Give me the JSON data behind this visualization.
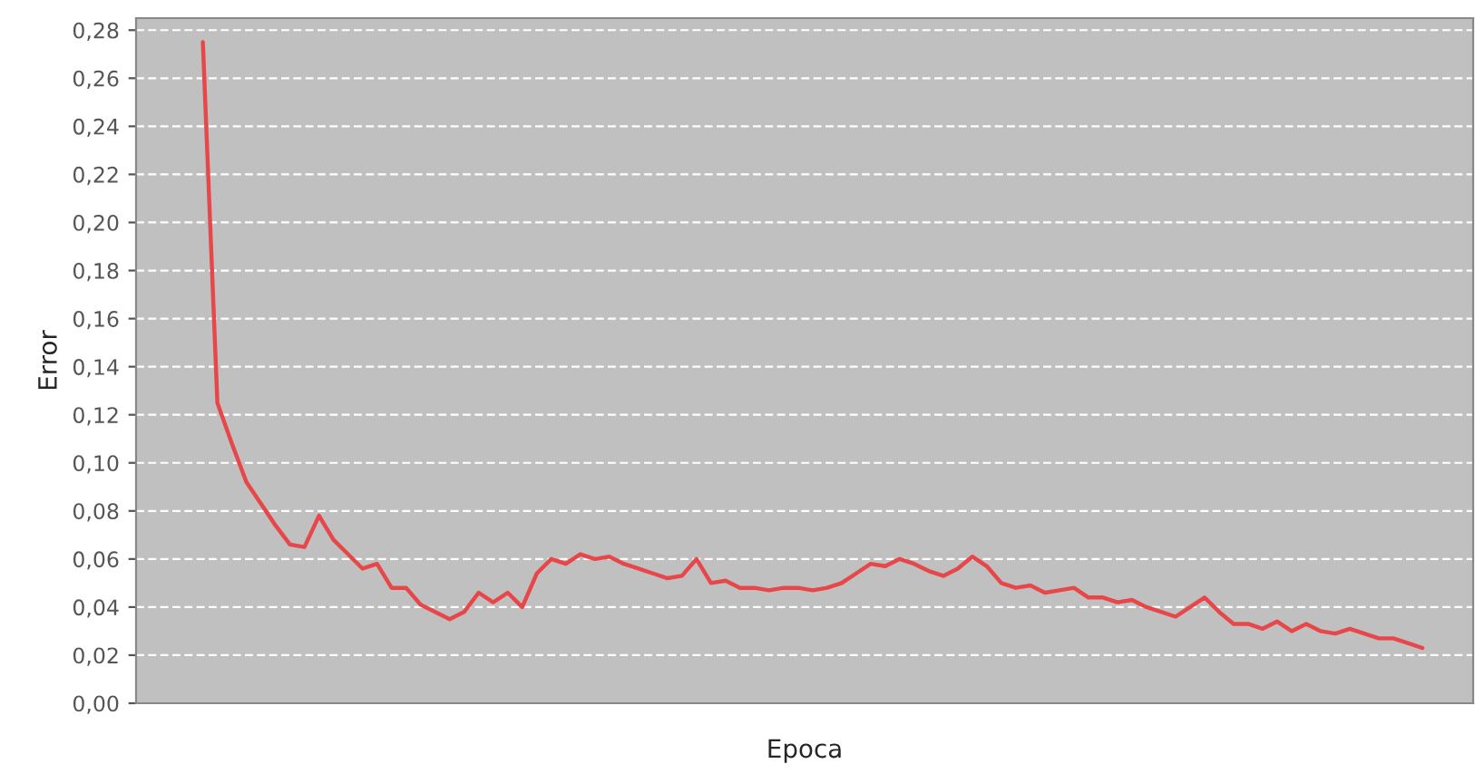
{
  "chart_data": {
    "type": "line",
    "xlabel": "Epoca",
    "ylabel": "Error",
    "categories": [
      null,
      null,
      null,
      null,
      null,
      null,
      null,
      null,
      null,
      null,
      null,
      null,
      null,
      null,
      null,
      null,
      null,
      null,
      null,
      null,
      null,
      null,
      null,
      null,
      null,
      null,
      null,
      null,
      null,
      null,
      null,
      null,
      null,
      null,
      null,
      null,
      null,
      null,
      null,
      null,
      null,
      null,
      null,
      null,
      null,
      null,
      null,
      null,
      null,
      null,
      null,
      null,
      null,
      null,
      null,
      null,
      null,
      null,
      null,
      null,
      null,
      null,
      null,
      null,
      null,
      null,
      null,
      null,
      null,
      null,
      null,
      null,
      null,
      null,
      null,
      null,
      null,
      null,
      null,
      null,
      null,
      null,
      null,
      null,
      null
    ],
    "series": [
      {
        "color": "#e8474a",
        "values": [
          0.275,
          0.125,
          0.108,
          0.092,
          0.083,
          0.074,
          0.066,
          0.065,
          0.078,
          0.068,
          0.062,
          0.056,
          0.058,
          0.048,
          0.048,
          0.041,
          0.038,
          0.035,
          0.038,
          0.046,
          0.042,
          0.046,
          0.04,
          0.054,
          0.06,
          0.058,
          0.062,
          0.06,
          0.061,
          0.058,
          0.056,
          0.054,
          0.052,
          0.053,
          0.06,
          0.05,
          0.051,
          0.048,
          0.048,
          0.047,
          0.048,
          0.048,
          0.047,
          0.048,
          0.05,
          0.054,
          0.058,
          0.057,
          0.06,
          0.058,
          0.055,
          0.053,
          0.056,
          0.061,
          0.057,
          0.05,
          0.048,
          0.049,
          0.046,
          0.047,
          0.048,
          0.044,
          0.044,
          0.042,
          0.043,
          0.04,
          0.038,
          0.036,
          0.04,
          0.044,
          0.038,
          0.033,
          0.033,
          0.031,
          0.034,
          0.03,
          0.033,
          0.03,
          0.029,
          0.031,
          0.029,
          0.027,
          0.027,
          0.025,
          0.023
        ]
      }
    ],
    "ylim": [
      0,
      0.285
    ],
    "yticks": [
      {
        "value": 0,
        "label": "0,00"
      },
      {
        "value": 0.02,
        "label": "0,02"
      },
      {
        "value": 0.04,
        "label": "0,04"
      },
      {
        "value": 0.06,
        "label": "0,06"
      },
      {
        "value": 0.08,
        "label": "0,08"
      },
      {
        "value": 0.1,
        "label": "0,10"
      },
      {
        "value": 0.12,
        "label": "0,12"
      },
      {
        "value": 0.14,
        "label": "0,14"
      },
      {
        "value": 0.16,
        "label": "0,16"
      },
      {
        "value": 0.18,
        "label": "0,18"
      },
      {
        "value": 0.2,
        "label": "0,20"
      },
      {
        "value": 0.22,
        "label": "0,22"
      },
      {
        "value": 0.24,
        "label": "0,24"
      },
      {
        "value": 0.26,
        "label": "0,26"
      },
      {
        "value": 0.28,
        "label": "0,28"
      }
    ],
    "grid": "y",
    "tick_labels": "y",
    "legend": false,
    "marker": "none",
    "line_style": "solid"
  }
}
